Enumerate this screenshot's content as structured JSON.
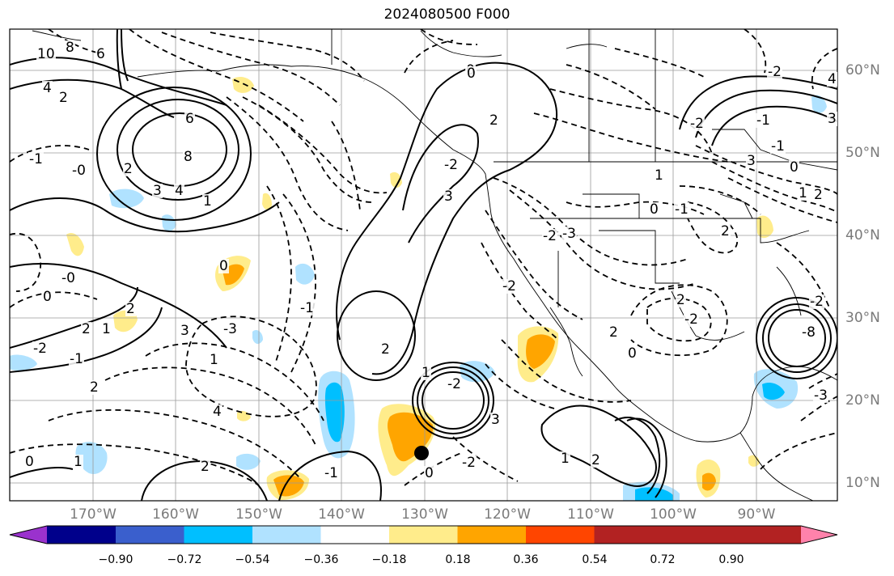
{
  "title": "2024080500 F000",
  "map": {
    "lat_labels": [
      "60°N",
      "50°N",
      "40°N",
      "30°N",
      "20°N",
      "10°N"
    ],
    "lon_labels": [
      "170°W",
      "160°W",
      "150°W",
      "140°W",
      "130°W",
      "120°W",
      "110°W",
      "100°W",
      "90°W"
    ],
    "grid": true,
    "contour_labels": [
      "10",
      "8",
      "6",
      "4",
      "2",
      "8",
      "6",
      "4",
      "3",
      "-1",
      "-0",
      "2",
      "1",
      "0",
      "-2",
      "-1",
      "-0",
      "0",
      "2",
      "1",
      "2",
      "2",
      "1",
      "0",
      "3",
      "1",
      "4",
      "-3",
      "2",
      "3",
      "-2",
      "2",
      "0",
      "-2",
      "-1",
      "1",
      "-2",
      "3",
      "-2",
      "0",
      "-1",
      "2",
      "1",
      "2",
      "2",
      "0",
      "-1",
      "2",
      "-2",
      "-2",
      "-3",
      "0",
      "1",
      "3",
      "-1",
      "-2",
      "2",
      "0",
      "-1",
      "1",
      "2",
      "4",
      "3",
      "-2",
      "-8",
      "-3",
      "-2",
      "0"
    ],
    "line_color": "#000000",
    "marker": "black-dot"
  },
  "colorbar": {
    "levels": [
      "−0.90",
      "−0.72",
      "−0.54",
      "−0.36",
      "−0.18",
      "0.18",
      "0.36",
      "0.54",
      "0.72",
      "0.90"
    ],
    "colors": [
      "#9a32cd",
      "#00008b",
      "#3a5fcd",
      "#00bfff",
      "#b0e2ff",
      "#ffffff",
      "#ffec8b",
      "#ffa500",
      "#ff4500",
      "#b22222",
      "#ff82ab"
    ]
  }
}
